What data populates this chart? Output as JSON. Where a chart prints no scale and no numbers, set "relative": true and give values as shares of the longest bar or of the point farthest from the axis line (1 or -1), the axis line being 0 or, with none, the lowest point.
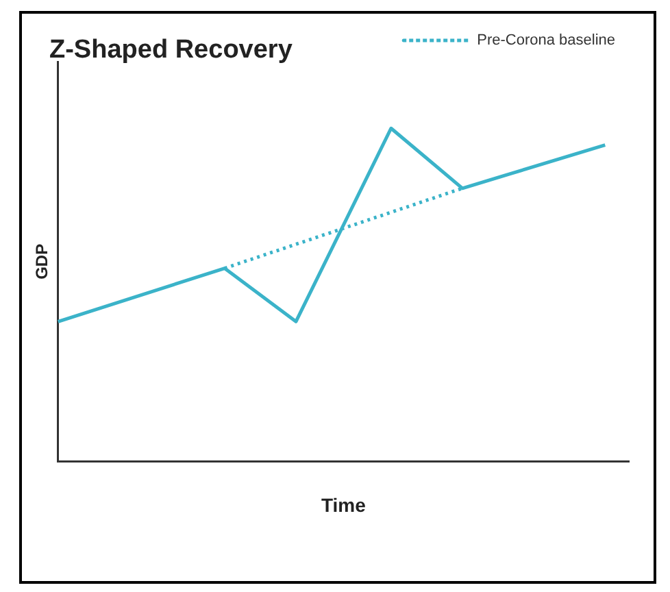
{
  "chart_data": {
    "type": "line",
    "title": "Z-Shaped Recovery",
    "xlabel": "Time",
    "ylabel": "GDP",
    "relative": true,
    "grid": false,
    "legend": "top right",
    "marker": "none",
    "categories": [
      null,
      null,
      null,
      null,
      null,
      null,
      null,
      null,
      null,
      null,
      null,
      null,
      null,
      null,
      null,
      null,
      null,
      null,
      null,
      null,
      null,
      null,
      null,
      null,
      null
    ],
    "series": [
      {
        "color": "#3bb3c9",
        "line_style": "solid",
        "values": [
          0.42,
          null,
          null,
          null,
          null,
          null,
          null,
          0.58,
          null,
          null,
          0.42,
          null,
          null,
          null,
          1,
          null,
          null,
          0.82,
          null,
          null,
          null,
          null,
          null,
          0.95,
          null
        ]
      },
      {
        "name": "Pre-Corona baseline",
        "color": "#3bb3c9",
        "line_style": "dotted",
        "values": [
          null,
          null,
          null,
          null,
          null,
          null,
          null,
          0.58,
          null,
          null,
          null,
          null,
          null,
          null,
          null,
          null,
          null,
          0.82,
          null,
          null,
          null,
          null,
          null,
          null,
          null
        ]
      }
    ]
  }
}
